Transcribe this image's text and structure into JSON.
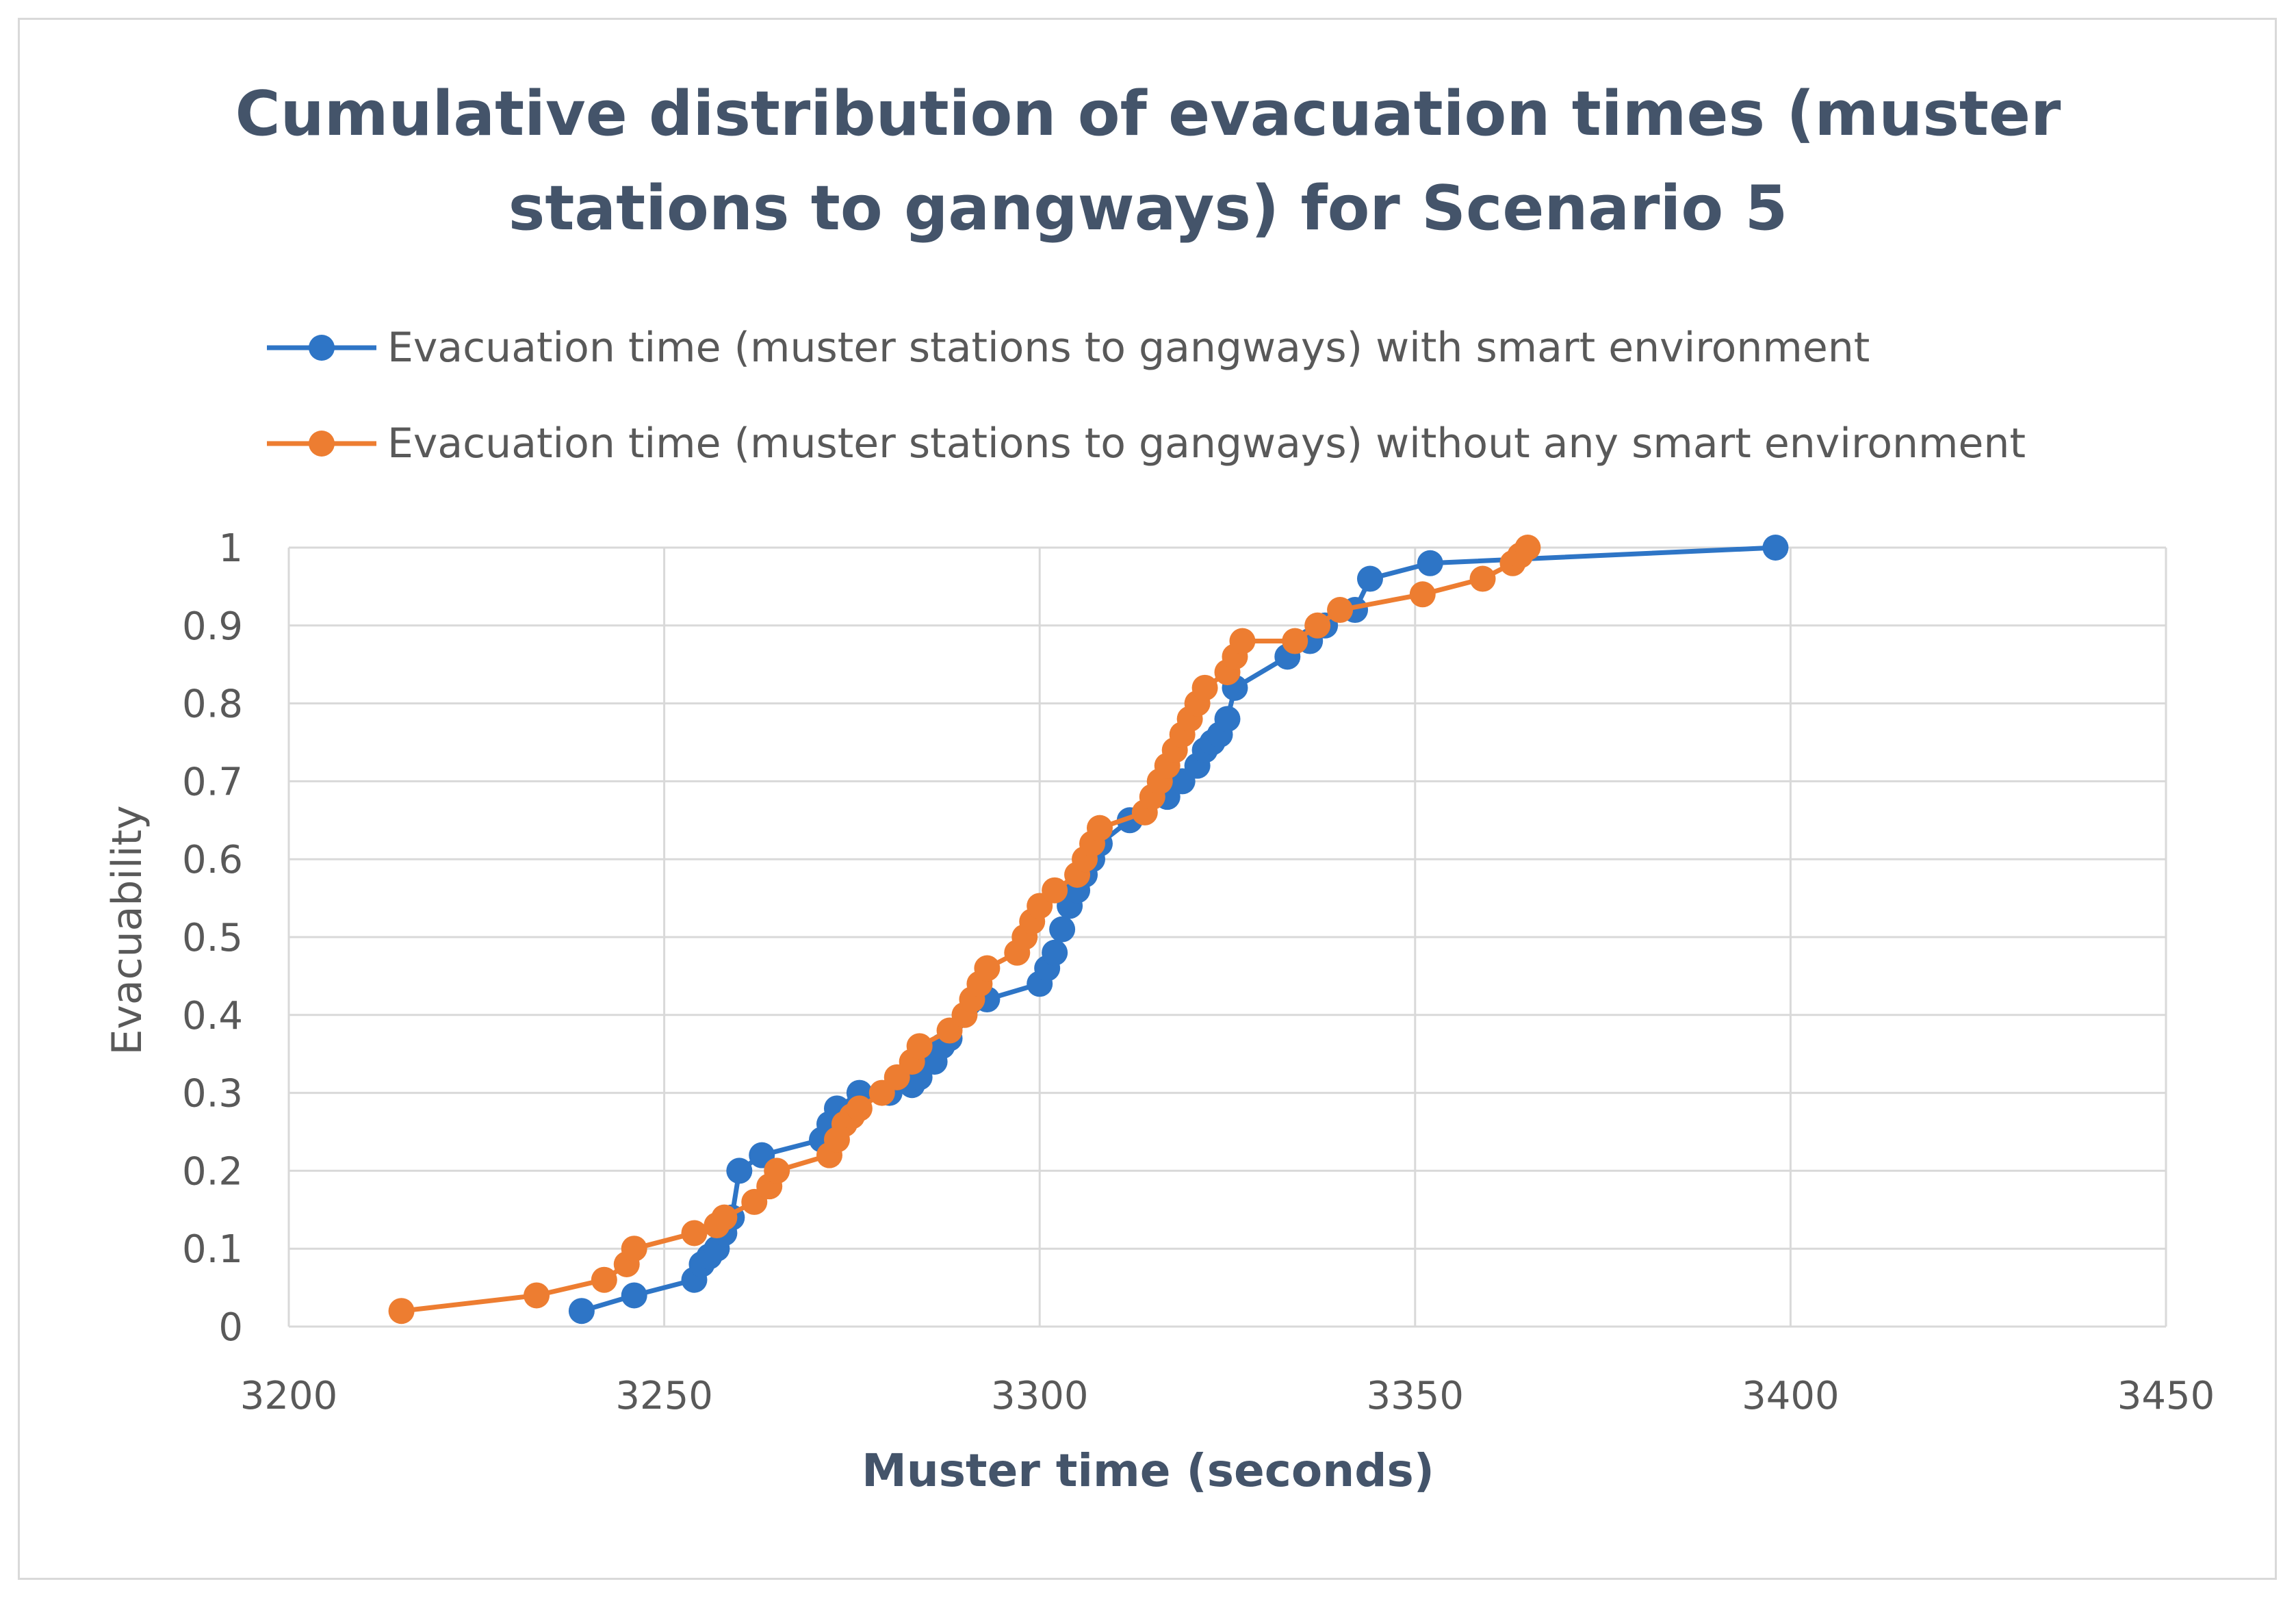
{
  "chart_data": {
    "type": "line",
    "title": "Cumulative distribution of evacuation times (muster stations to gangways) for Scenario 5",
    "title_lines": [
      "Cumulative distribution of evacuation times (muster",
      "stations to gangways) for Scenario 5"
    ],
    "xlabel": "Muster time (seconds)",
    "ylabel": "Evacuability",
    "xlim": [
      3200,
      3450
    ],
    "ylim": [
      0,
      1
    ],
    "x_ticks": [
      3200,
      3250,
      3300,
      3350,
      3400,
      3450
    ],
    "y_ticks": [
      0,
      0.1,
      0.2,
      0.3,
      0.4,
      0.5,
      0.6,
      0.7,
      0.8,
      0.9,
      1
    ],
    "y_tick_labels": [
      "0",
      "0.1",
      "0.2",
      "0.3",
      "0.4",
      "0.5",
      "0.6",
      "0.7",
      "0.8",
      "0.9",
      "1"
    ],
    "grid": true,
    "legend_position": "top",
    "series": [
      {
        "name": "Evacuation time (muster stations to gangways) with smart environment",
        "color": "#2e75c6",
        "x": [
          3239,
          3246,
          3254,
          3255,
          3256,
          3257,
          3258,
          3259,
          3260,
          3263,
          3271,
          3272,
          3273,
          3276,
          3280,
          3283,
          3284,
          3286,
          3287,
          3288,
          3293,
          3300,
          3301,
          3302,
          3303,
          3304,
          3305,
          3306,
          3307,
          3308,
          3312,
          3317,
          3319,
          3321,
          3322,
          3323,
          3324,
          3325,
          3326,
          3333,
          3336,
          3338,
          3342,
          3344,
          3352,
          3398
        ],
        "y": [
          0.02,
          0.04,
          0.06,
          0.08,
          0.09,
          0.1,
          0.12,
          0.14,
          0.2,
          0.22,
          0.24,
          0.26,
          0.28,
          0.3,
          0.3,
          0.31,
          0.32,
          0.34,
          0.36,
          0.37,
          0.42,
          0.44,
          0.46,
          0.48,
          0.51,
          0.54,
          0.56,
          0.58,
          0.6,
          0.62,
          0.65,
          0.68,
          0.7,
          0.72,
          0.74,
          0.75,
          0.76,
          0.78,
          0.82,
          0.86,
          0.88,
          0.9,
          0.92,
          0.96,
          0.98,
          1.0
        ]
      },
      {
        "name": "Evacuation time (muster stations to gangways) without any smart environment",
        "color": "#ed7d31",
        "x": [
          3215,
          3233,
          3242,
          3245,
          3246,
          3254,
          3257,
          3258,
          3262,
          3264,
          3265,
          3272,
          3273,
          3274,
          3275,
          3276,
          3279,
          3281,
          3283,
          3284,
          3288,
          3290,
          3291,
          3292,
          3293,
          3297,
          3298,
          3299,
          3300,
          3302,
          3305,
          3306,
          3307,
          3308,
          3314,
          3315,
          3316,
          3317,
          3318,
          3319,
          3320,
          3321,
          3322,
          3325,
          3326,
          3327,
          3334,
          3337,
          3340,
          3351,
          3359,
          3363,
          3364,
          3365
        ],
        "y": [
          0.02,
          0.04,
          0.06,
          0.08,
          0.1,
          0.12,
          0.13,
          0.14,
          0.16,
          0.18,
          0.2,
          0.22,
          0.24,
          0.26,
          0.27,
          0.28,
          0.3,
          0.32,
          0.34,
          0.36,
          0.38,
          0.4,
          0.42,
          0.44,
          0.46,
          0.48,
          0.5,
          0.52,
          0.54,
          0.56,
          0.58,
          0.6,
          0.62,
          0.64,
          0.66,
          0.68,
          0.7,
          0.72,
          0.74,
          0.76,
          0.78,
          0.8,
          0.82,
          0.84,
          0.86,
          0.88,
          0.88,
          0.9,
          0.92,
          0.94,
          0.96,
          0.98,
          0.99,
          1.0
        ]
      }
    ]
  }
}
